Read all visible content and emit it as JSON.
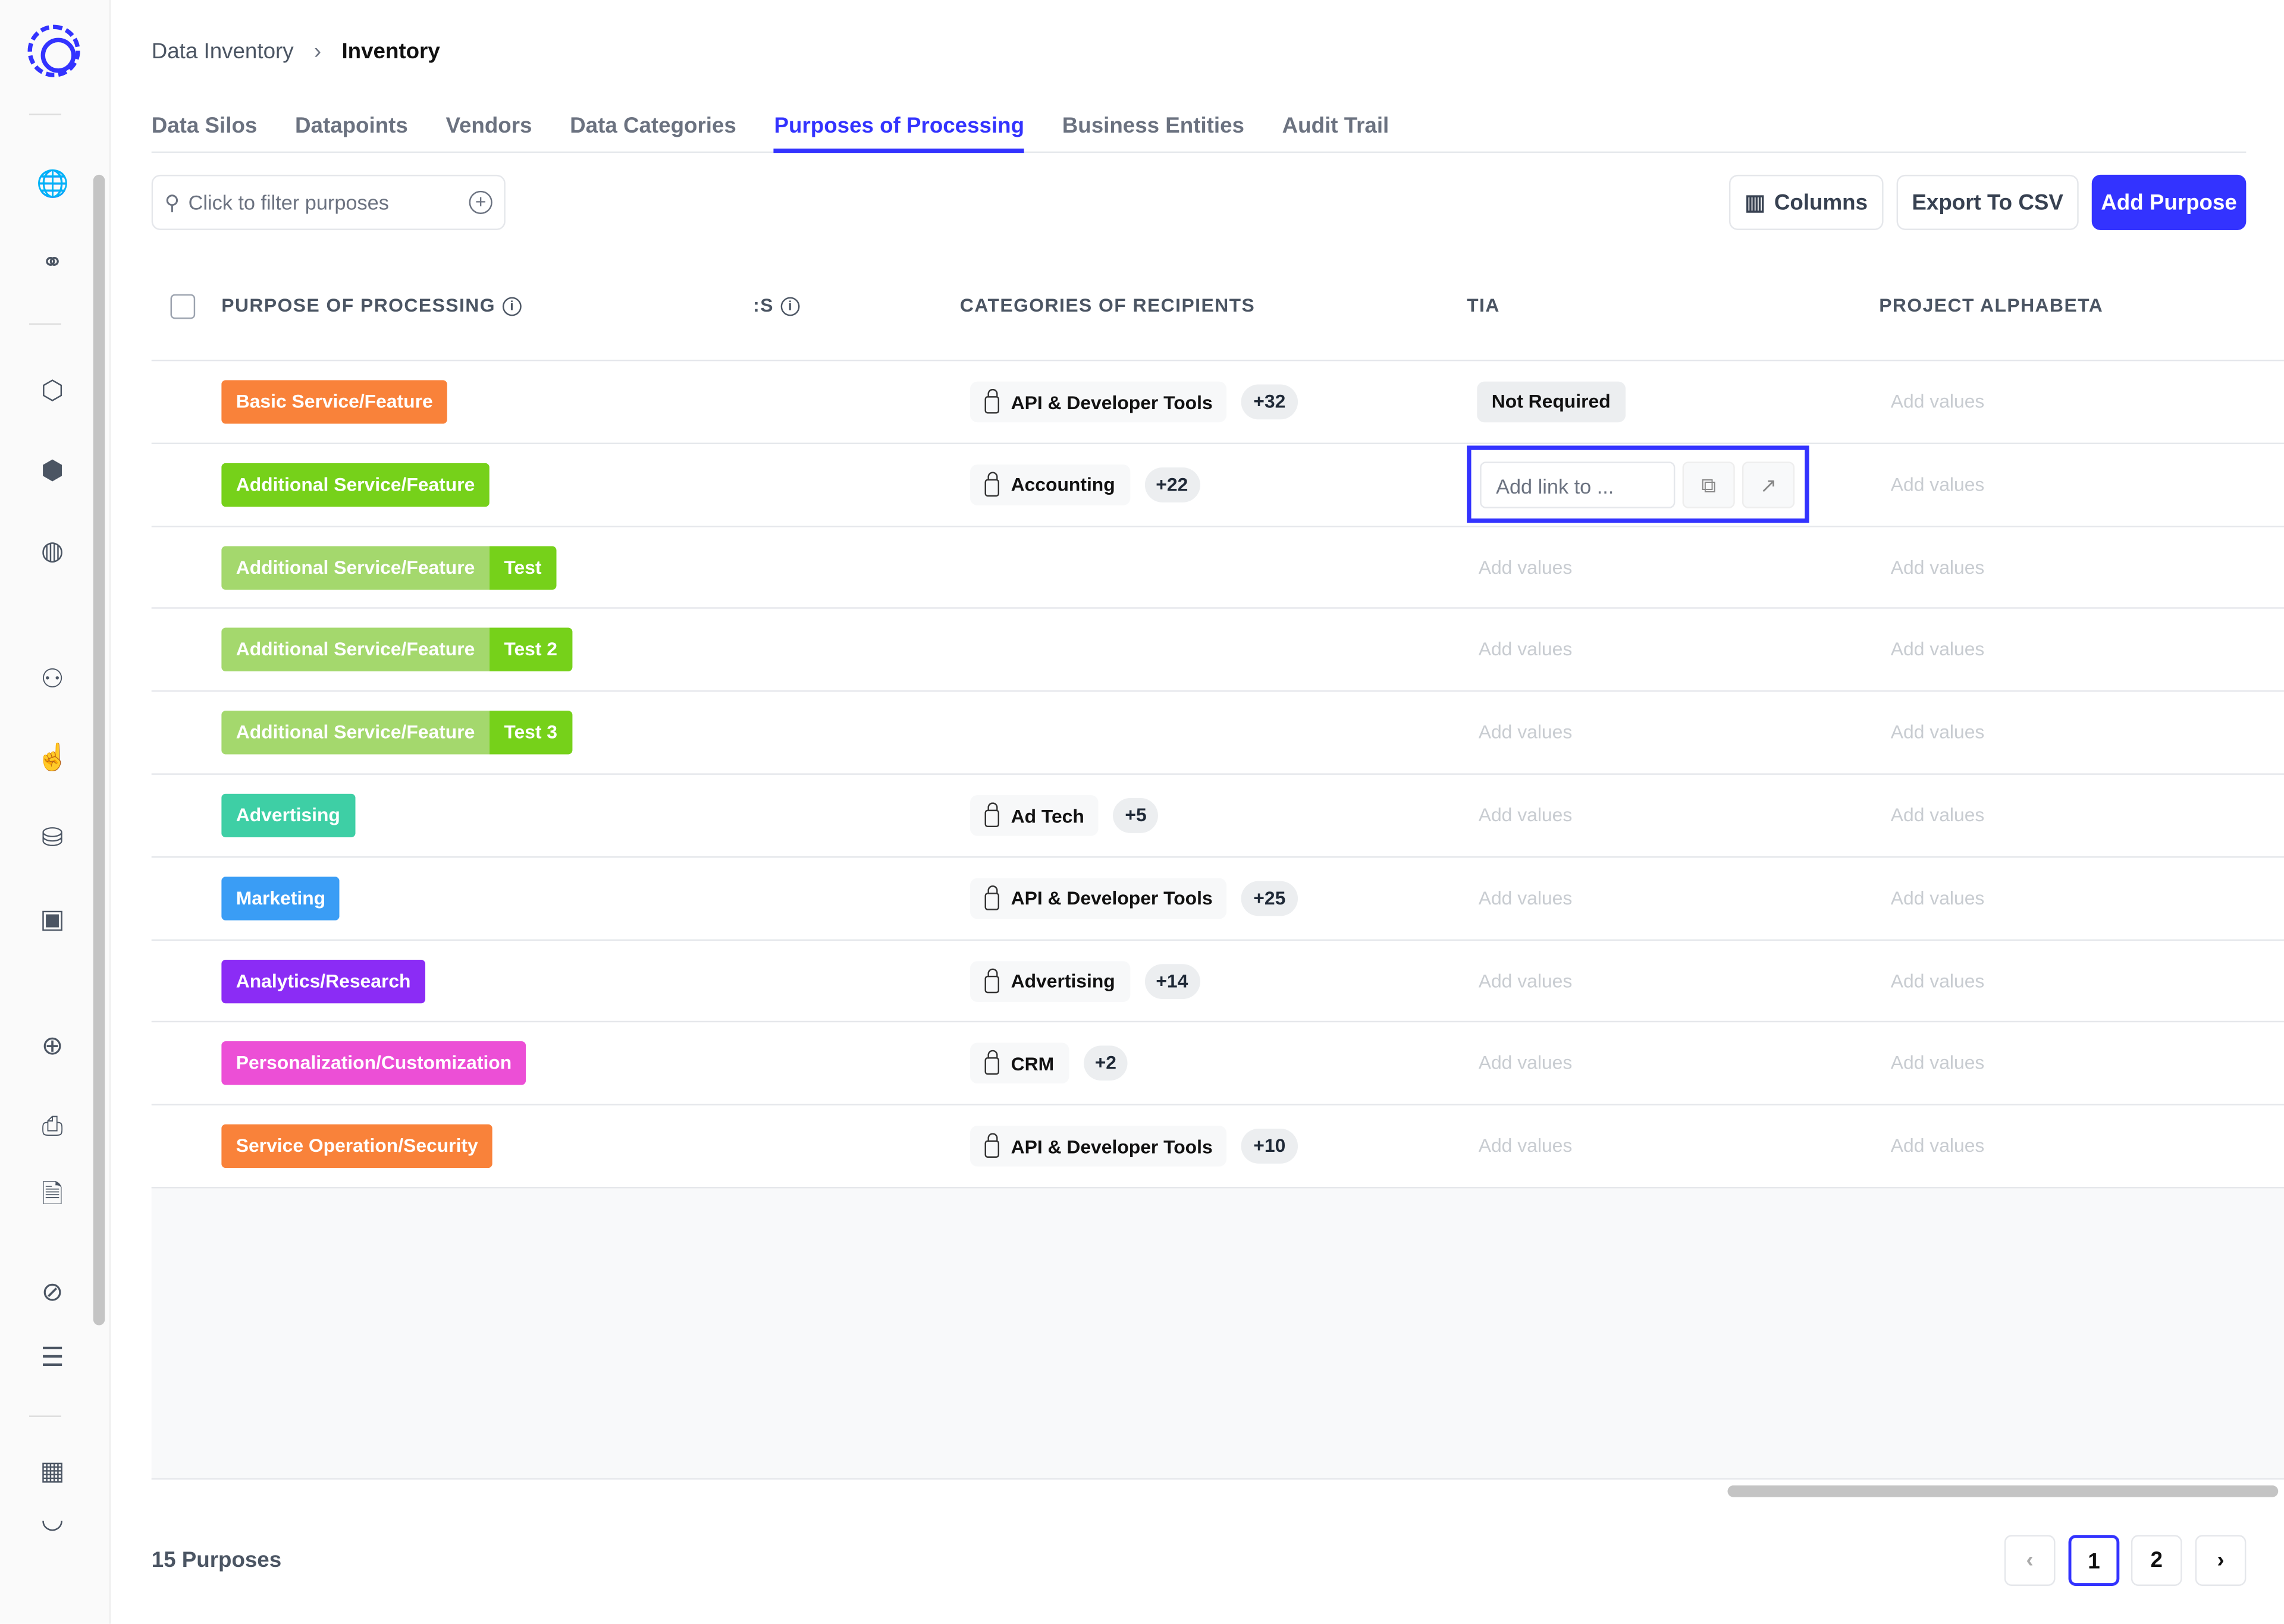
{
  "breadcrumb": {
    "parent": "Data Inventory",
    "current": "Inventory"
  },
  "tabs": [
    {
      "label": "Data Silos"
    },
    {
      "label": "Datapoints"
    },
    {
      "label": "Vendors"
    },
    {
      "label": "Data Categories"
    },
    {
      "label": "Purposes of Processing",
      "active": true
    },
    {
      "label": "Business Entities"
    },
    {
      "label": "Audit Trail"
    }
  ],
  "search": {
    "placeholder": "Click to filter purposes"
  },
  "toolbar": {
    "columns": "Columns",
    "export": "Export To CSV",
    "add": "Add Purpose"
  },
  "columns": {
    "purpose": "PURPOSE OF PROCESSING",
    "partial": ":S",
    "recipients": "CATEGORIES OF RECIPIENTS",
    "tia": "TIA",
    "project": "PROJECT ALPHABETA"
  },
  "empty_value": "Add values",
  "tia_input_placeholder": "Add link to ...",
  "rows": [
    {
      "purpose": "Basic Service/Feature",
      "color": "#f9823a",
      "sub": "",
      "recipient": "API & Developer Tools",
      "more": "+32",
      "tia": "Not Required"
    },
    {
      "purpose": "Additional Service/Feature",
      "color": "#76d11a",
      "sub": "",
      "recipient": "Accounting",
      "more": "+22",
      "tia_editing": true
    },
    {
      "purpose": "Additional Service/Feature",
      "color": "#a4d86d",
      "sub": "Test",
      "subcolor": "#76d11a"
    },
    {
      "purpose": "Additional Service/Feature",
      "color": "#a4d86d",
      "sub": "Test 2",
      "subcolor": "#76d11a"
    },
    {
      "purpose": "Additional Service/Feature",
      "color": "#a4d86d",
      "sub": "Test 3",
      "subcolor": "#76d11a"
    },
    {
      "purpose": "Advertising",
      "color": "#3ecfa5",
      "sub": "",
      "recipient": "Ad Tech",
      "more": "+5"
    },
    {
      "purpose": "Marketing",
      "color": "#3a9df5",
      "sub": "",
      "recipient": "API & Developer Tools",
      "more": "+25"
    },
    {
      "purpose": "Analytics/Research",
      "color": "#8b2cf5",
      "sub": "",
      "recipient": "Advertising",
      "more": "+14"
    },
    {
      "purpose": "Personalization/Customization",
      "color": "#ec4fd6",
      "sub": "",
      "recipient": "CRM",
      "more": "+2"
    },
    {
      "purpose": "Service Operation/Security",
      "color": "#f9823a",
      "sub": "",
      "recipient": "API & Developer Tools",
      "more": "+10"
    }
  ],
  "footer": {
    "count": "15 Purposes",
    "pages": [
      "1",
      "2"
    ],
    "current_page": "1"
  },
  "accent": "#3333ff"
}
